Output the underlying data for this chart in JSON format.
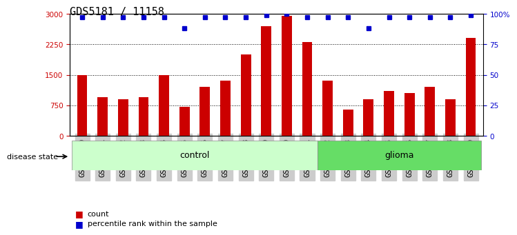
{
  "title": "GDS5181 / 11158",
  "samples": [
    "GSM769920",
    "GSM769921",
    "GSM769922",
    "GSM769923",
    "GSM769924",
    "GSM769925",
    "GSM769926",
    "GSM769927",
    "GSM769928",
    "GSM769929",
    "GSM769930",
    "GSM769931",
    "GSM769932",
    "GSM769933",
    "GSM769934",
    "GSM769935",
    "GSM769936",
    "GSM769937",
    "GSM769938",
    "GSM769939"
  ],
  "counts": [
    1500,
    950,
    900,
    950,
    1500,
    720,
    1200,
    1350,
    2000,
    2700,
    2950,
    2300,
    1350,
    650,
    900,
    1100,
    1050,
    1200,
    900,
    2400
  ],
  "percentile_ranks": [
    97,
    97,
    97,
    97,
    97,
    88,
    97,
    97,
    97,
    99,
    100,
    97,
    97,
    97,
    88,
    97,
    97,
    97,
    97,
    99
  ],
  "control_count": 12,
  "glioma_count": 8,
  "ylim_left": [
    0,
    3000
  ],
  "ylim_right": [
    0,
    100
  ],
  "yticks_left": [
    0,
    750,
    1500,
    2250,
    3000
  ],
  "yticks_right": [
    0,
    25,
    50,
    75,
    100
  ],
  "bar_color": "#cc0000",
  "dot_color": "#0000cc",
  "control_label": "control",
  "glioma_label": "glioma",
  "disease_state_label": "disease state",
  "legend_count_label": "count",
  "legend_pct_label": "percentile rank within the sample",
  "control_bg": "#ccffcc",
  "glioma_bg": "#66dd66",
  "tick_bg": "#cccccc",
  "grid_color": "#000000",
  "dotted_lines": [
    750,
    1500,
    2250
  ],
  "title_fontsize": 11,
  "tick_fontsize": 7.5,
  "label_fontsize": 8
}
